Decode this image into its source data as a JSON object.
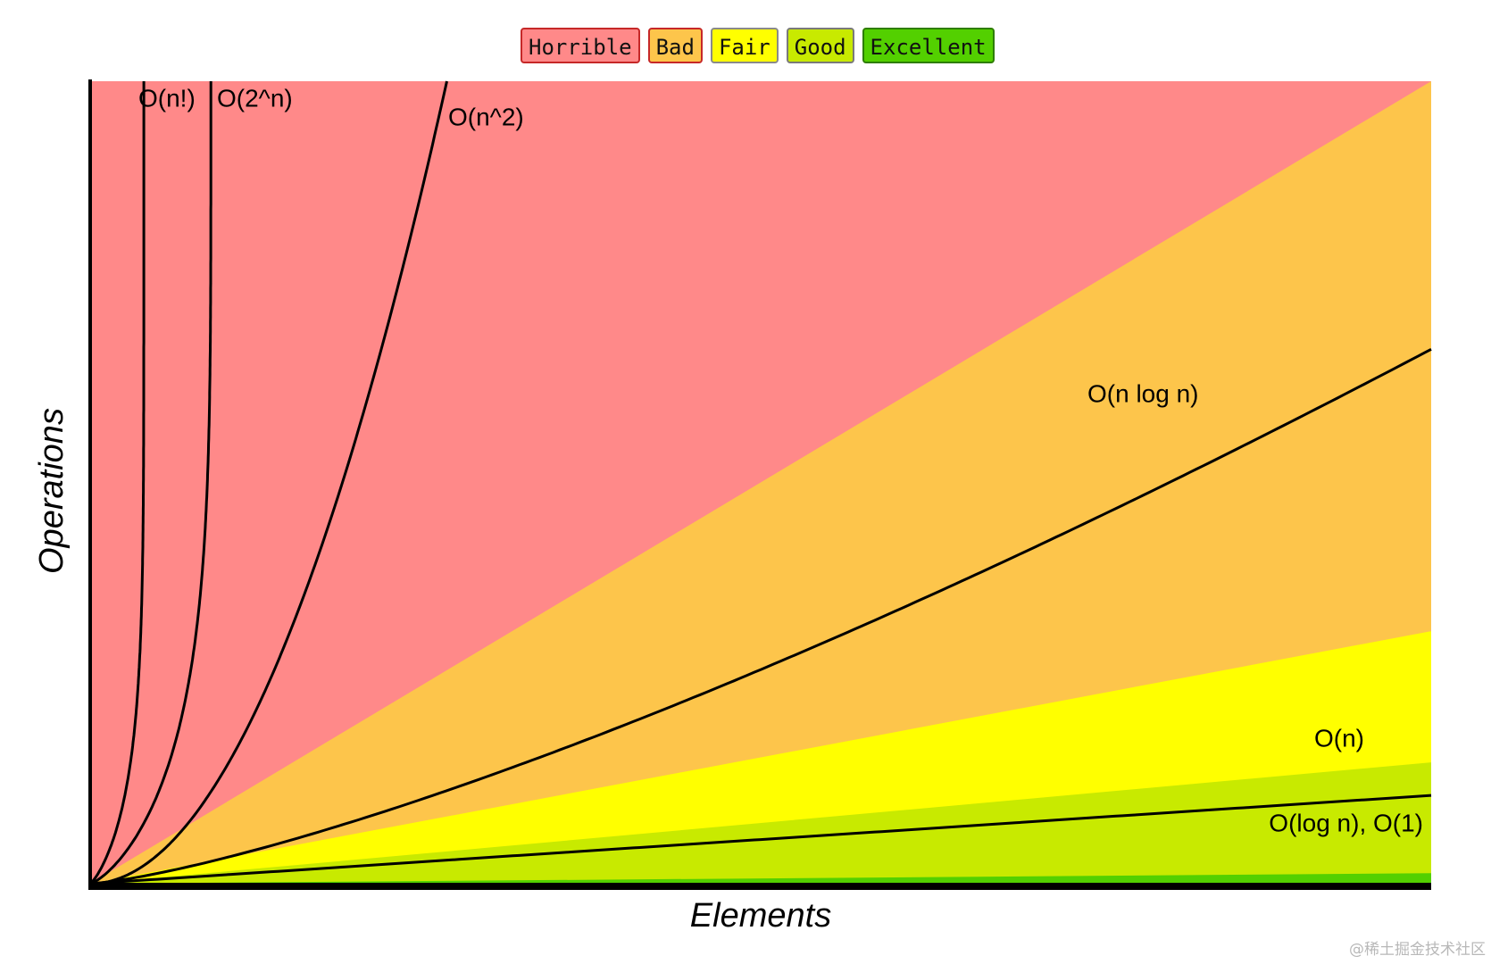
{
  "chart_data": {
    "type": "area",
    "title": "",
    "xlabel": "Elements",
    "ylabel": "Operations",
    "grid": false,
    "legend": {
      "position": "top-center",
      "items": [
        {
          "label": "Horrible",
          "color": "#ff8989",
          "border": "#c62828"
        },
        {
          "label": "Bad",
          "color": "#fdc54b",
          "border": "#c62828"
        },
        {
          "label": "Fair",
          "color": "#ffff00",
          "border": "#8a8a8a"
        },
        {
          "label": "Good",
          "color": "#c8ea00",
          "border": "#7a7a7a"
        },
        {
          "label": "Excellent",
          "color": "#53d000",
          "border": "#2e7d00"
        }
      ]
    },
    "regions": [
      {
        "name": "Horrible",
        "color": "#ff8989"
      },
      {
        "name": "Bad",
        "color": "#fdc54b"
      },
      {
        "name": "Fair",
        "color": "#ffff00"
      },
      {
        "name": "Good",
        "color": "#c8ea00"
      },
      {
        "name": "Excellent",
        "color": "#53d000"
      }
    ],
    "series": [
      {
        "label": "O(n!)"
      },
      {
        "label": "O(2^n)"
      },
      {
        "label": "O(n^2)"
      },
      {
        "label": "O(n log n)"
      },
      {
        "label": "O(n)"
      },
      {
        "label": "O(log n), O(1)"
      }
    ]
  },
  "watermark": "@稀土掘金技术社区"
}
